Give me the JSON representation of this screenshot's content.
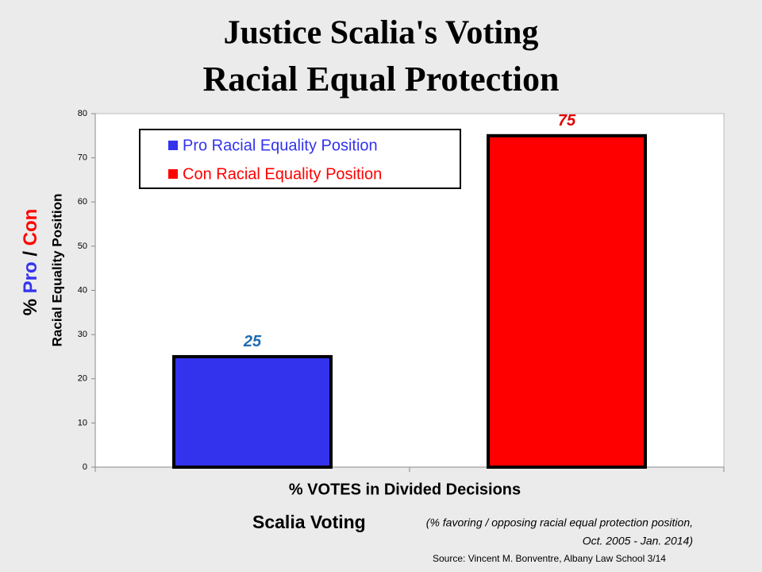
{
  "chart_data": {
    "type": "bar",
    "title": [
      "Justice Scalia's Voting",
      "Racial Equal Protection"
    ],
    "ylabel": {
      "prefix": "%",
      "pro": "Pro",
      "sep": "/",
      "con": "Con",
      "line2": "Racial Equality Position"
    },
    "xlabel": "% VOTES in Divided Decisions",
    "subtitle": "Scalia Voting",
    "subtitle_note": [
      "(% favoring / opposing racial equal protection position,",
      "Oct. 2005 - Jan. 2014)"
    ],
    "source": "Source:  Vincent M. Bonventre,  Albany Law School  3/14",
    "categories": [
      null
    ],
    "series": [
      {
        "name": "Pro Racial Equality Position",
        "color": "#3333ee",
        "label_color": "#1f6cb0",
        "values": [
          25
        ]
      },
      {
        "name": "Con Racial Equality Position",
        "color": "#ff0000",
        "label_color": "#e00000",
        "values": [
          75
        ]
      }
    ],
    "ylim": [
      0,
      80
    ],
    "yticks": [
      0,
      10,
      20,
      30,
      40,
      50,
      60,
      70,
      80
    ],
    "grid": false,
    "legend": "top-left"
  }
}
